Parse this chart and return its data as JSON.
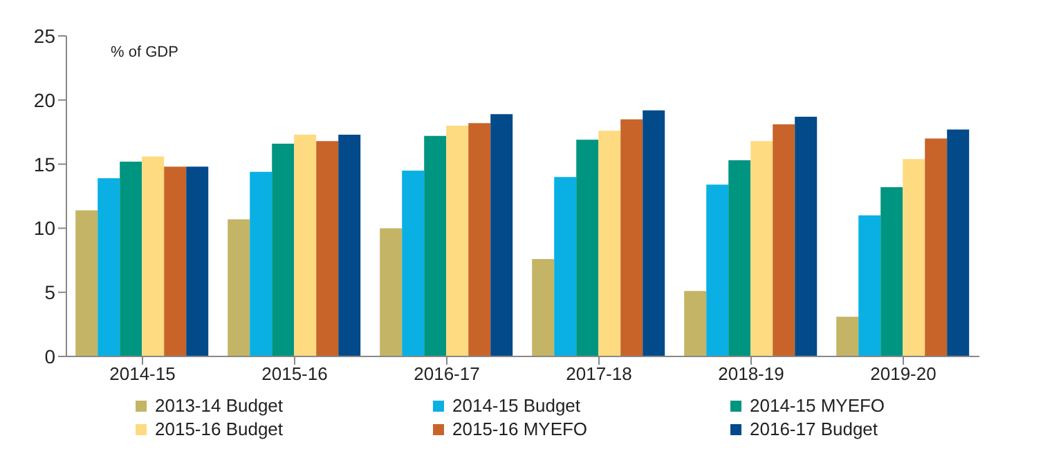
{
  "chart_data": {
    "type": "bar",
    "ylabel": "% of GDP",
    "categories": [
      "2014-15",
      "2015-16",
      "2016-17",
      "2017-18",
      "2018-19",
      "2019-20"
    ],
    "series": [
      {
        "name": "2013-14 Budget",
        "color": "#c4b466",
        "values": [
          11.4,
          10.7,
          10.0,
          7.6,
          5.1,
          3.1
        ]
      },
      {
        "name": "2014-15 Budget",
        "color": "#0ab0e3",
        "values": [
          13.9,
          14.4,
          14.5,
          14.0,
          13.4,
          11.0
        ]
      },
      {
        "name": "2014-15 MYEFO",
        "color": "#009580",
        "values": [
          15.2,
          16.6,
          17.2,
          16.9,
          15.3,
          13.2
        ]
      },
      {
        "name": "2015-16 Budget",
        "color": "#fedb80",
        "values": [
          15.6,
          17.3,
          18.0,
          17.6,
          16.8,
          15.4
        ]
      },
      {
        "name": "2015-16 MYEFO",
        "color": "#c8642a",
        "values": [
          14.8,
          16.8,
          18.2,
          18.5,
          18.1,
          17.0
        ]
      },
      {
        "name": "2016-17 Budget",
        "color": "#034a8a",
        "values": [
          14.8,
          17.3,
          18.9,
          19.2,
          18.7,
          17.7
        ]
      }
    ],
    "ylim": [
      0,
      25
    ],
    "yticks": [
      0,
      5,
      10,
      15,
      20,
      25
    ],
    "grid": false,
    "legend": "bottom"
  }
}
